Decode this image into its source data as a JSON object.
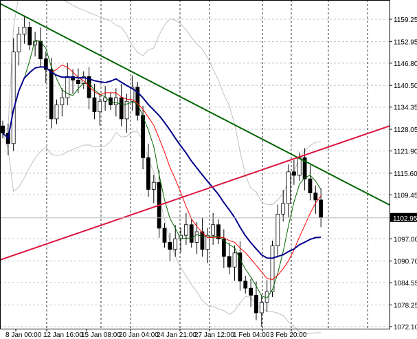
{
  "chart_data": {
    "type": "candlestick",
    "title": "",
    "y_ticks": [
      "1159.25",
      "1152.95",
      "1146.80",
      "1140.50",
      "1134.35",
      "1128.05",
      "1121.90",
      "1115.60",
      "1109.45",
      "1102.95",
      "1097.00",
      "1090.70",
      "1084.55",
      "1078.25",
      "1072.10"
    ],
    "x_ticks": [
      "8 Jan 00:00",
      "12 Jan 16:00",
      "15 Jan 08:00",
      "20 Jan 04:00",
      "24 Jan 21:00",
      "27 Jan 12:00",
      "1 Feb 04:00",
      "3 Feb 20:00"
    ],
    "ylim": [
      1072.1,
      1159.25
    ],
    "current_price": "1102.95",
    "grid": true,
    "closes": [
      1127,
      1124,
      1150,
      1155,
      1157,
      1152,
      1153,
      1148,
      1145,
      1131,
      1135,
      1137,
      1143,
      1142,
      1141,
      1143,
      1137,
      1133,
      1136,
      1137,
      1135,
      1137,
      1131,
      1136,
      1140,
      1132,
      1120,
      1111,
      1113,
      1100,
      1096,
      1094,
      1097,
      1098,
      1101,
      1096,
      1099,
      1094,
      1098,
      1101,
      1097,
      1092,
      1089,
      1093,
      1085,
      1083,
      1081,
      1076,
      1079,
      1082,
      1095,
      1104,
      1107,
      1116,
      1115,
      1120,
      1114,
      1110,
      1108,
      1103
    ],
    "indicators": [
      {
        "type": "moving-average",
        "period": 5,
        "color": "#006400"
      },
      {
        "type": "moving-average",
        "period": 10,
        "color": "#ff0000"
      },
      {
        "type": "moving-average",
        "period": 20,
        "color": "#00008b"
      },
      {
        "type": "bollinger-bands",
        "period": 20,
        "color": "#c0c0c0"
      }
    ],
    "trendlines": [
      {
        "color": "#006400",
        "start_price": 1163.7,
        "end_price": 1106.6
      },
      {
        "color": "#dc143c",
        "start_price": 1091.0,
        "end_price": 1129.0
      }
    ],
    "colors": {
      "background": "#ffffff",
      "grid": "#c0c0c0",
      "candle": "#000000",
      "price_label_bg": "#000000"
    }
  }
}
